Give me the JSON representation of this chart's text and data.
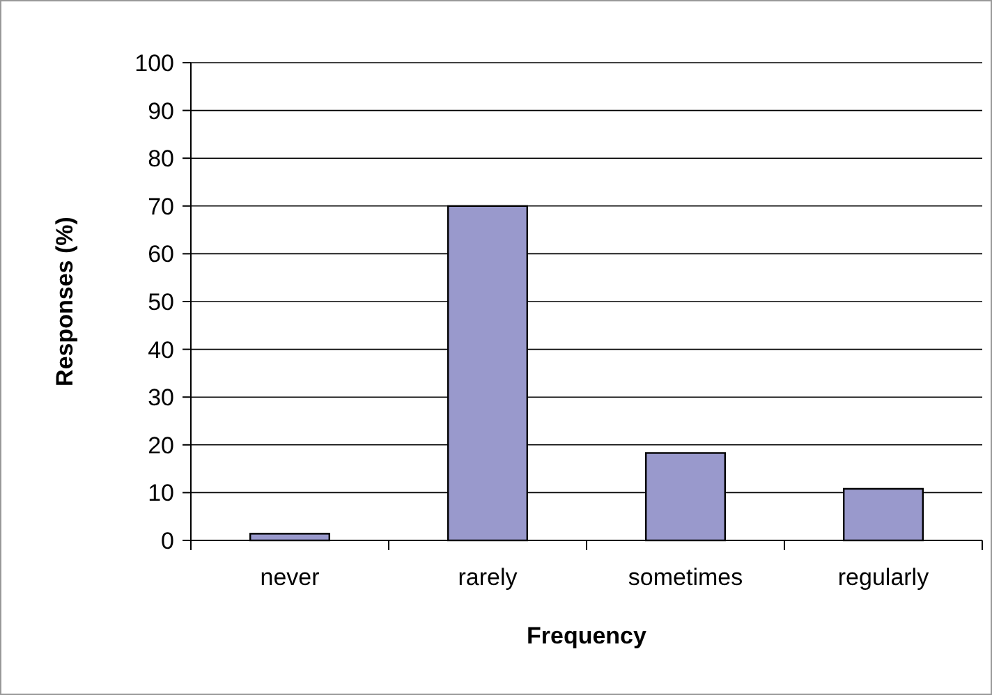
{
  "chart_data": {
    "type": "bar",
    "xlabel": "Frequency",
    "ylabel": "Responses (%)",
    "categories": [
      "never",
      "rarely",
      "sometimes",
      "regularly"
    ],
    "values": [
      1.4,
      70,
      18.3,
      10.8
    ],
    "color": "#9999cc",
    "ylim": [
      0,
      100
    ],
    "yticks": [
      0,
      10,
      20,
      30,
      40,
      50,
      60,
      70,
      80,
      90,
      100
    ],
    "grid": "y"
  }
}
